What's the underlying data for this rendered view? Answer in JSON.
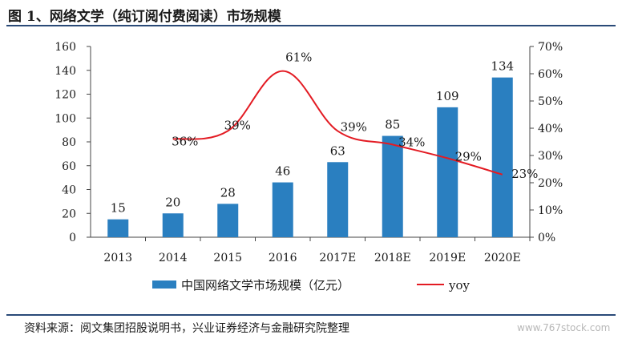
{
  "header": {
    "title": "图 1、网络文学（纯订阅付费阅读）市场规模"
  },
  "footer": {
    "source": "资料来源：阅文集团招股说明书，兴业证券经济与金融研究院整理",
    "watermark": "www.767stock.com"
  },
  "colors": {
    "bar": "#2a7fc0",
    "line": "#e31b23",
    "rule": "#2a4a78"
  },
  "chart_data": {
    "type": "bar",
    "categories": [
      "2013",
      "2014",
      "2015",
      "2016",
      "2017E",
      "2018E",
      "2019E",
      "2020E"
    ],
    "series": [
      {
        "name": "中国网络文学市场规模（亿元）",
        "type": "bar",
        "axis": "left",
        "values": [
          15,
          20,
          28,
          46,
          63,
          85,
          109,
          134
        ],
        "labels": [
          "15",
          "20",
          "28",
          "46",
          "63",
          "85",
          "109",
          "134"
        ]
      },
      {
        "name": "yoy",
        "type": "line",
        "axis": "right",
        "values": [
          null,
          0.36,
          0.39,
          0.61,
          0.39,
          0.34,
          0.29,
          0.23
        ],
        "labels": [
          "",
          "36%",
          "39%",
          "61%",
          "39%",
          "34%",
          "29%",
          "23%"
        ]
      }
    ],
    "y_left": {
      "range": [
        0,
        160
      ],
      "ticks": [
        "0",
        "20",
        "40",
        "60",
        "80",
        "100",
        "120",
        "140",
        "160"
      ]
    },
    "y_right": {
      "range": [
        0,
        0.7
      ],
      "ticks": [
        "0%",
        "10%",
        "20%",
        "30%",
        "40%",
        "50%",
        "60%",
        "70%"
      ]
    },
    "grid": false,
    "legend": "bottom"
  }
}
